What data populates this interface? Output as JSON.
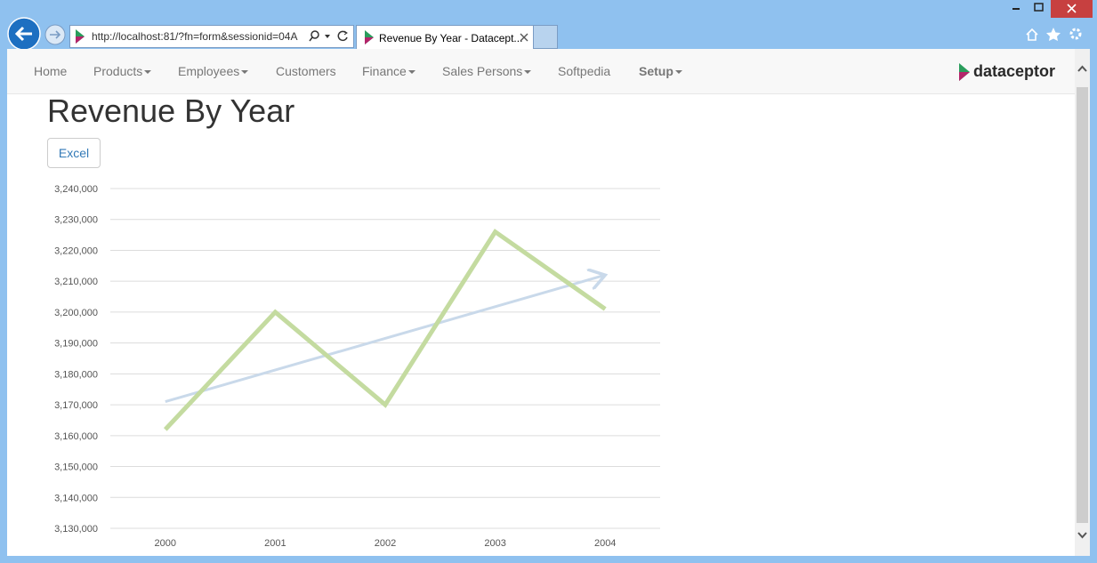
{
  "browser": {
    "url": "http://localhost:81/?fn=form&sessionid=04A",
    "tab_title": "Revenue By Year - Datacept..."
  },
  "nav": {
    "items": [
      "Home",
      "Products",
      "Employees",
      "Customers",
      "Finance",
      "Sales Persons",
      "Softpedia",
      "Setup"
    ],
    "logo": "dataceptor"
  },
  "page": {
    "title": "Revenue By Year",
    "button": "Excel"
  },
  "chart_data": {
    "type": "line",
    "categories": [
      "2000",
      "2001",
      "2002",
      "2003",
      "2004"
    ],
    "series": [
      {
        "color": "#c4dba0",
        "values": [
          3162000,
          3200000,
          3170000,
          3226000,
          3201000
        ]
      }
    ],
    "trend": {
      "color": "#c9d9ea",
      "from": 3171000,
      "to": 3212000
    },
    "ylim": [
      3130000,
      3240000
    ],
    "yticks": [
      {
        "value": 3130000,
        "label": "3,130,000"
      },
      {
        "value": 3140000,
        "label": "3,140,000"
      },
      {
        "value": 3150000,
        "label": "3,150,000"
      },
      {
        "value": 3160000,
        "label": "3,160,000"
      },
      {
        "value": 3170000,
        "label": "3,170,000"
      },
      {
        "value": 3180000,
        "label": "3,180,000"
      },
      {
        "value": 3190000,
        "label": "3,190,000"
      },
      {
        "value": 3200000,
        "label": "3,200,000"
      },
      {
        "value": 3210000,
        "label": "3,210,000"
      },
      {
        "value": 3220000,
        "label": "3,220,000"
      },
      {
        "value": 3230000,
        "label": "3,230,000"
      },
      {
        "value": 3240000,
        "label": "3,240,000"
      }
    ],
    "grid": true
  }
}
